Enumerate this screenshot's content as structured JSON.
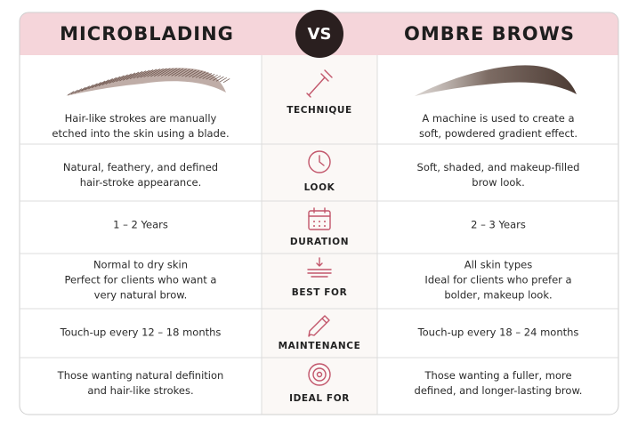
{
  "header": {
    "left_title": "MICROBLADING",
    "vs": "VS",
    "right_title": "OMBRE BROWS"
  },
  "rows": [
    {
      "label": "TECHNIQUE",
      "left": [
        "Hair-like strokes are manually",
        "etched into the skin using a blade."
      ],
      "right": [
        "A machine is used to create a",
        "soft, powdered gradient effect."
      ]
    },
    {
      "label": "LOOK",
      "left": [
        "Natural, feathery, and defined",
        "hair-stroke appearance."
      ],
      "right": [
        "Soft, shaded, and makeup-filled",
        "brow look."
      ]
    },
    {
      "label": "DURATION",
      "left": [
        "1 – 2 Years"
      ],
      "right": [
        "2 – 3 Years"
      ]
    },
    {
      "label": "BEST FOR",
      "left": [
        "Normal to dry skin",
        "Perfect for clients who want a",
        "very natural brow."
      ],
      "right": [
        "All skin types",
        "Ideal for clients who prefer a",
        "bolder, makeup look."
      ]
    },
    {
      "label": "MAINTENANCE",
      "left": [
        "Touch-up every 12 – 18 months"
      ],
      "right": [
        "Touch-up every 18 – 24 months"
      ]
    },
    {
      "label": "IDEAL FOR",
      "left": [
        "Those wanting natural definition",
        "and hair-like strokes."
      ],
      "right": [
        "Those wanting a fuller, more",
        "defined, and longer-lasting brow."
      ]
    }
  ]
}
